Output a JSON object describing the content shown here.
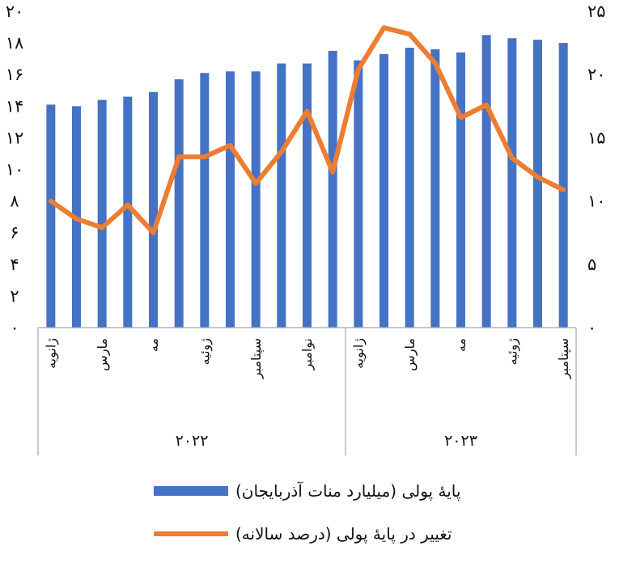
{
  "chart_data": {
    "type": "bar",
    "categories": [
      "ژانویه",
      "",
      "مارس",
      "",
      "مه",
      "",
      "ژوئیه",
      "",
      "سپتامبر",
      "",
      "نوامبر",
      "",
      "ژانویه",
      "",
      "مارس",
      "",
      "مه",
      "",
      "ژوئیه",
      "",
      "سپتامبر"
    ],
    "groups": [
      {
        "label": "۲۰۲۲",
        "count": 12
      },
      {
        "label": "۲۰۲۳",
        "count": 9
      }
    ],
    "series": [
      {
        "name": "پایهٔ پولی (میلیارد منات آذربایجان)",
        "type": "bar",
        "axis": "left",
        "color": "#4472C4",
        "values": [
          14.1,
          14.0,
          14.4,
          14.6,
          14.9,
          15.7,
          16.1,
          16.2,
          16.2,
          16.7,
          16.7,
          17.5,
          16.9,
          17.3,
          17.7,
          17.6,
          17.4,
          18.5,
          18.3,
          18.2,
          18.0
        ]
      },
      {
        "name": "تغییر در پایهٔ پولی (درصد سالانه)",
        "type": "line",
        "axis": "right",
        "color": "#ED7D31",
        "values": [
          10.0,
          8.6,
          7.9,
          9.7,
          7.5,
          13.5,
          13.5,
          14.4,
          11.4,
          13.9,
          17.1,
          12.3,
          20.4,
          23.7,
          23.2,
          20.9,
          16.6,
          17.6,
          13.4,
          11.9,
          10.9
        ]
      }
    ],
    "y_axis_left": {
      "ylim": [
        0,
        20
      ],
      "ticks": [
        0,
        2,
        4,
        6,
        8,
        10,
        12,
        14,
        16,
        18,
        20
      ],
      "tick_labels": [
        "۰",
        "۲",
        "۴",
        "۶",
        "۸",
        "۱۰",
        "۱۲",
        "۱۴",
        "۱۶",
        "۱۸",
        "۲۰"
      ]
    },
    "y_axis_right": {
      "ylim": [
        0,
        25
      ],
      "ticks": [
        0,
        5,
        10,
        15,
        20,
        25
      ],
      "tick_labels": [
        "۰",
        "۵",
        "۱۰",
        "۱۵",
        "۲۰",
        "۲۵"
      ]
    },
    "grid": false,
    "legend": "bottom"
  }
}
